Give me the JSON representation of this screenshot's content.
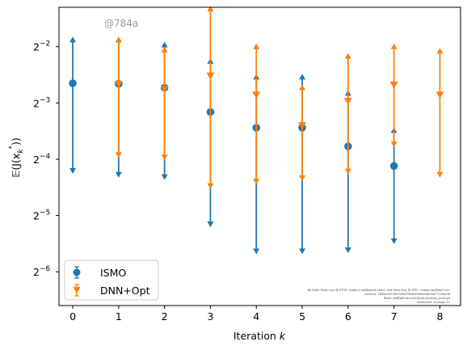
{
  "chart_data": {
    "type": "scatter",
    "title": "",
    "xlabel_pre": "Iteration ",
    "xlabel_var": "k",
    "ylabel": "𝔼(J(x",
    "ylabel_sub": "k",
    "ylabel_sup": "*",
    "ylabel_post": "))",
    "yscale": "log2",
    "xlim": [
      -0.3,
      8.45
    ],
    "ylim_log2": [
      -6.6,
      -1.3
    ],
    "x_ticks": [
      0,
      1,
      2,
      3,
      4,
      5,
      6,
      7,
      8
    ],
    "x_tick_labels": [
      "0",
      "1",
      "2",
      "3",
      "4",
      "5",
      "6",
      "7",
      "8"
    ],
    "y_ticks_log2": [
      -6,
      -5,
      -4,
      -3,
      -2
    ],
    "y_tick_base": "2",
    "y_tick_exponents": [
      "−6",
      "−5",
      "−4",
      "−3",
      "−2"
    ],
    "legend_position": "lower-left",
    "grid": false,
    "series": [
      {
        "name": "ISMO",
        "color": "#1f77b4",
        "marker": "circle",
        "cap": "triangle",
        "x": [
          0,
          1,
          2,
          3,
          4,
          5,
          6,
          7
        ],
        "mean_log2": [
          -2.65,
          -2.66,
          -2.73,
          -3.16,
          -3.44,
          -3.44,
          -3.77,
          -4.12
        ],
        "upper_log2": [
          -1.88,
          -1.88,
          -1.97,
          -2.26,
          -2.54,
          -2.54,
          -2.83,
          -3.49
        ],
        "lower_log2": [
          -4.2,
          -4.27,
          -4.31,
          -5.15,
          -5.63,
          -5.63,
          -5.61,
          -5.45
        ]
      },
      {
        "name": "DNN+Opt",
        "color": "#ff7f0e",
        "marker": "triangle-down",
        "cap": "triangle",
        "x": [
          1,
          2,
          3,
          4,
          5,
          6,
          7,
          8
        ],
        "mean_log2": [
          -2.66,
          -2.75,
          -2.51,
          -2.85,
          -3.39,
          -2.96,
          -2.67,
          -2.85
        ],
        "upper_log2": [
          -1.88,
          -2.06,
          -1.33,
          -2.0,
          -2.73,
          -2.17,
          -2.0,
          -2.08
        ],
        "lower_log2": [
          -3.92,
          -3.96,
          -4.47,
          -4.39,
          -4.33,
          -4.21,
          -3.73,
          -4.27
        ]
      }
    ],
    "watermark": "@784a",
    "footnote_lines": [
      "By Kjetil Olsen Lye @ ETHZ <kjetil.o.lye@gmail.com> and Deep Ray @ EPFL <deep.ray@epfl.ch>",
      "Commit: 784ae1037853d38f796b3e9d3ed4e54a77c9be08",
      "Repo: git@github.com:kjetil-lye/ismo_heat.git",
      "Hostname: eu-login-37"
    ]
  }
}
